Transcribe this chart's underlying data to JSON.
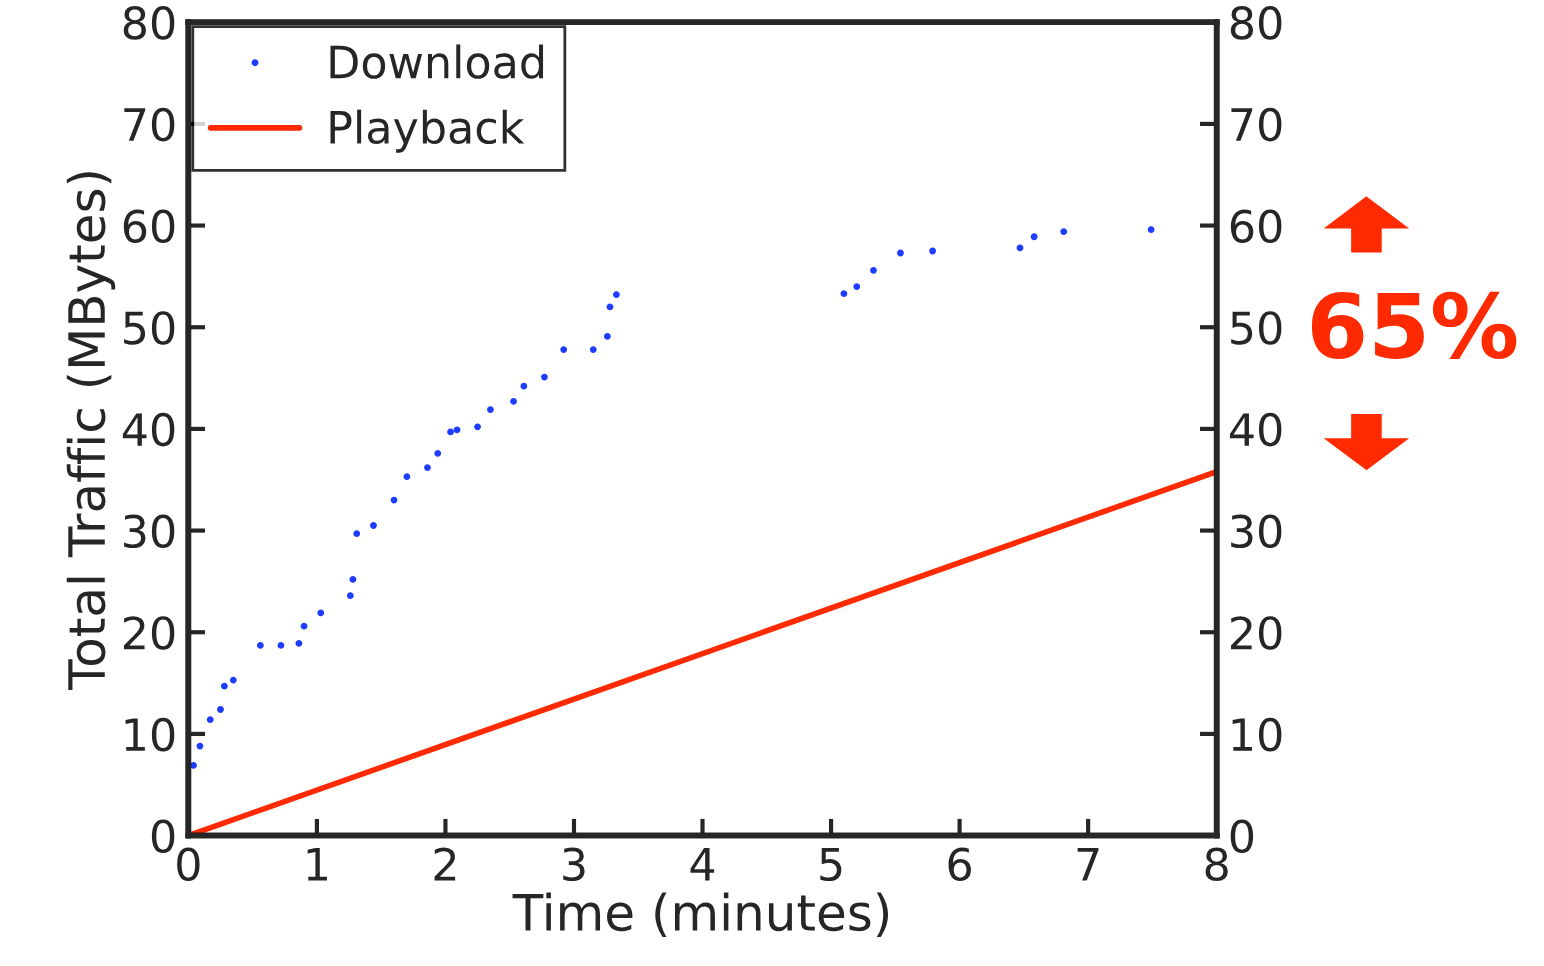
{
  "chart_data": {
    "type": "line",
    "xlabel": "Time (minutes)",
    "ylabel": "Total Traffic (MBytes)",
    "xlim": [
      0,
      8
    ],
    "xticks": [
      0,
      1,
      2,
      3,
      4,
      5,
      6,
      7,
      8
    ],
    "ylim": [
      0,
      80
    ],
    "yticks": [
      0,
      10,
      20,
      30,
      40,
      50,
      60,
      70,
      80
    ],
    "y2lim": [
      0,
      80
    ],
    "y2ticks": [
      0,
      10,
      20,
      30,
      40,
      50,
      60,
      70,
      80
    ],
    "series": [
      {
        "name": "Download",
        "type": "scatter",
        "color": "#1f3dff",
        "marker": "circle",
        "x": [
          0.04,
          0.09,
          0.17,
          0.25,
          0.28,
          0.35,
          0.56,
          0.72,
          0.86,
          0.9,
          1.03,
          1.26,
          1.28,
          1.31,
          1.44,
          1.6,
          1.7,
          1.86,
          1.94,
          2.04,
          2.09,
          2.25,
          2.35,
          2.53,
          2.61,
          2.77,
          2.92,
          3.15,
          3.26,
          3.28,
          3.33,
          5.1,
          5.2,
          5.33,
          5.54,
          5.79,
          6.47,
          6.58,
          6.81,
          7.49
        ],
        "values": [
          6.9,
          8.8,
          11.4,
          12.4,
          14.7,
          15.3,
          18.7,
          18.7,
          18.9,
          20.6,
          21.9,
          23.6,
          25.2,
          29.7,
          30.5,
          33,
          35.3,
          36.2,
          37.6,
          39.7,
          39.9,
          40.2,
          41.9,
          42.7,
          44.2,
          45.1,
          47.8,
          47.8,
          49.1,
          52,
          53.2,
          53.3,
          54,
          55.6,
          57.3,
          57.5,
          57.8,
          58.9,
          59.4,
          59.6
        ]
      },
      {
        "name": "Playback",
        "color": "#ff2a00",
        "line_style": "solid",
        "x": [
          0,
          8
        ],
        "values": [
          0,
          35.8
        ]
      }
    ],
    "annotations": [
      "65%"
    ],
    "legend": "top left",
    "grid": false
  }
}
